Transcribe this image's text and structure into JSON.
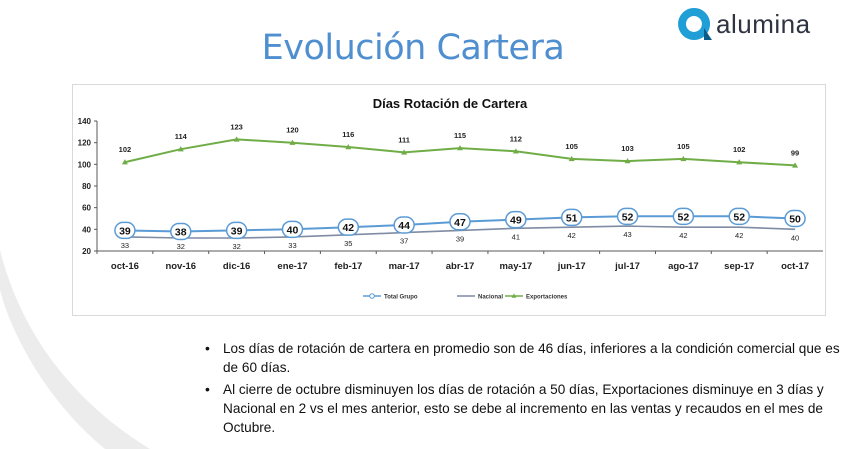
{
  "slide": {
    "title": "Evolución Cartera",
    "logo_text": "alumina",
    "bullets": [
      "Los días de rotación de cartera en promedio son de 46 días, inferiores a la condición comercial que es de 60 días.",
      "Al cierre de octubre disminuyen  los días de  rotación a 50 días, Exportaciones  disminuye en 3 días  y Nacional en 2 vs el mes anterior,  esto se debe al incremento en  las ventas y recaudos  en el mes de Octubre."
    ]
  },
  "colors": {
    "title": "#4f8fd0",
    "total_grupo": "#5b9bd5",
    "nacional": "#7f8ca3",
    "exportaciones": "#70ad47",
    "logo_text": "#2e3440",
    "logo_mark": "#1f9fd6"
  },
  "chart_data": {
    "type": "line",
    "title": "Días Rotación de Cartera",
    "categories": [
      "oct-16",
      "nov-16",
      "dic-16",
      "ene-17",
      "feb-17",
      "mar-17",
      "abr-17",
      "may-17",
      "jun-17",
      "jul-17",
      "ago-17",
      "sep-17",
      "oct-17"
    ],
    "ylim": [
      20,
      140
    ],
    "yticks": [
      20,
      40,
      60,
      80,
      100,
      120,
      140
    ],
    "grid": false,
    "legend_position": "bottom",
    "series": [
      {
        "name": "Total Grupo",
        "values": [
          39,
          38,
          39,
          40,
          42,
          44,
          47,
          49,
          51,
          52,
          52,
          52,
          50
        ],
        "marker": "circle",
        "labels": "boxed"
      },
      {
        "name": "Nacional",
        "values": [
          33,
          32,
          32,
          33,
          35,
          37,
          39,
          41,
          42,
          43,
          42,
          42,
          40
        ],
        "marker": "none",
        "labels": "below"
      },
      {
        "name": "Exportaciones",
        "values": [
          102,
          114,
          123,
          120,
          116,
          111,
          115,
          112,
          105,
          103,
          105,
          102,
          99
        ],
        "marker": "triangle",
        "labels": "above"
      }
    ]
  }
}
